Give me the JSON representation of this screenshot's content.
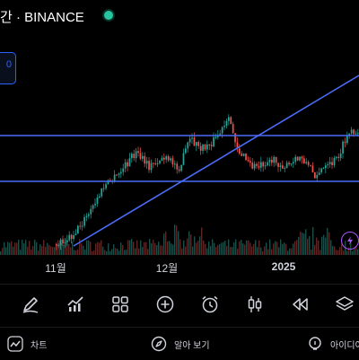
{
  "header": {
    "symbol_title": "간 · BINANCE",
    "status": "live",
    "status_color": "#26c6a2",
    "value_badge": "0"
  },
  "chart": {
    "type": "candlestick",
    "trendline_color": "#4a6cf7",
    "up_color": "#26a69a",
    "down_color": "#ef5350",
    "x_labels": [
      "11월",
      "12월",
      "2025"
    ],
    "indicator_icon": "lightning-icon"
  },
  "toolbar": {
    "tools": [
      {
        "name": "pen-icon"
      },
      {
        "name": "indicators-icon"
      },
      {
        "name": "grid-icon"
      },
      {
        "name": "plus-circle-icon"
      },
      {
        "name": "alarm-clock-icon"
      },
      {
        "name": "candles-icon"
      },
      {
        "name": "rewind-icon"
      },
      {
        "name": "layers-icon"
      }
    ]
  },
  "bottom_nav": {
    "chart_label": "차트",
    "explore_label": "알아 보기",
    "ideas_label": "아이디어"
  }
}
